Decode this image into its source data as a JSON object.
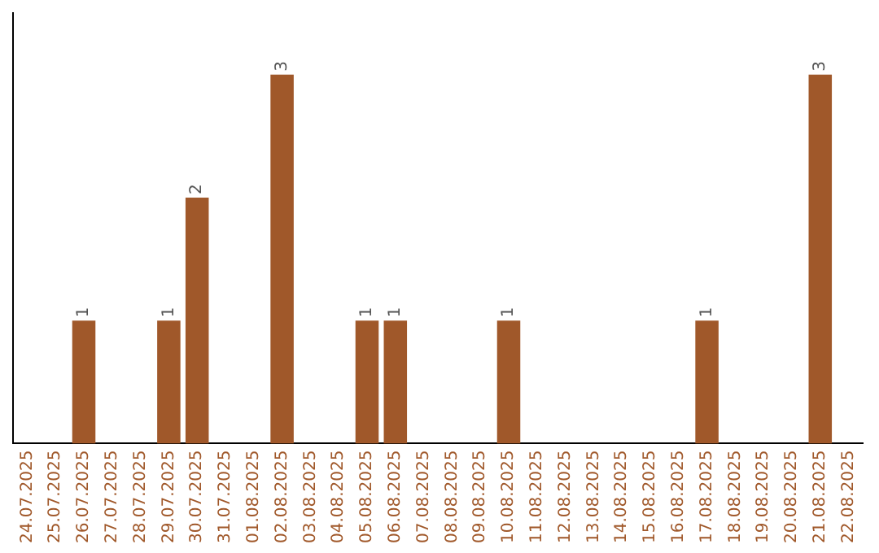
{
  "chart_data": {
    "type": "bar",
    "categories": [
      "24.07.2025",
      "25.07.2025",
      "26.07.2025",
      "27.07.2025",
      "28.07.2025",
      "29.07.2025",
      "30.07.2025",
      "31.07.2025",
      "01.08.2025",
      "02.08.2025",
      "03.08.2025",
      "04.08.2025",
      "05.08.2025",
      "06.08.2025",
      "07.08.2025",
      "08.08.2025",
      "09.08.2025",
      "10.08.2025",
      "11.08.2025",
      "12.08.2025",
      "13.08.2025",
      "14.08.2025",
      "15.08.2025",
      "16.08.2025",
      "17.08.2025",
      "18.08.2025",
      "19.08.2025",
      "20.08.2025",
      "21.08.2025",
      "22.08.2025"
    ],
    "values": [
      0,
      0,
      1,
      0,
      0,
      1,
      2,
      0,
      0,
      3,
      0,
      0,
      1,
      1,
      0,
      0,
      0,
      1,
      0,
      0,
      0,
      0,
      0,
      0,
      1,
      0,
      0,
      0,
      3,
      0
    ],
    "value_labels": [
      null,
      null,
      "1",
      null,
      null,
      "1",
      "2",
      null,
      null,
      "3",
      null,
      null,
      "1",
      "1",
      null,
      null,
      null,
      "1",
      null,
      null,
      null,
      null,
      null,
      null,
      "1",
      null,
      null,
      null,
      "3",
      null
    ],
    "color": "#a0582a",
    "tick_labels": "x",
    "grid": false,
    "legend": false
  }
}
